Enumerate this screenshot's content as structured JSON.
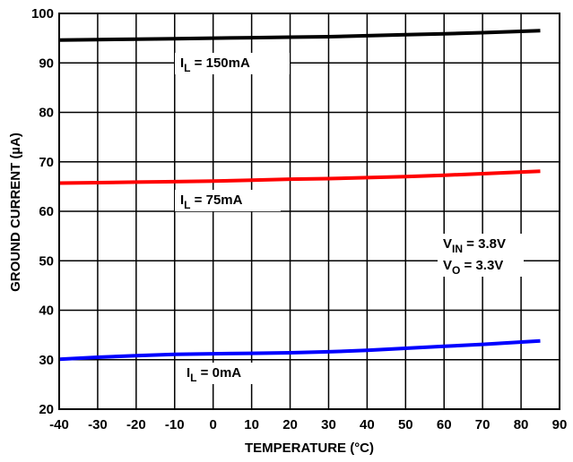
{
  "chart_data": {
    "type": "line",
    "xlabel": "TEMPERATURE (°C)",
    "ylabel": "GROUND CURRENT (µA)",
    "xlim": [
      -40,
      90
    ],
    "ylim": [
      20,
      100
    ],
    "xticks": [
      -40,
      -30,
      -20,
      -10,
      0,
      10,
      20,
      30,
      40,
      50,
      60,
      70,
      80,
      90
    ],
    "yticks": [
      20,
      30,
      40,
      50,
      60,
      70,
      80,
      90,
      100
    ],
    "xtick_labels": [
      "-40",
      "-30",
      "-20",
      "-10",
      "0",
      "10",
      "20",
      "30",
      "40",
      "50",
      "60",
      "70",
      "80",
      "90"
    ],
    "ytick_labels": [
      "20",
      "30",
      "40",
      "50",
      "60",
      "70",
      "80",
      "90",
      "100"
    ],
    "grid": true,
    "series": [
      {
        "name": "IL = 150mA",
        "color": "#000000",
        "x": [
          -40,
          -30,
          -20,
          -10,
          0,
          10,
          20,
          30,
          40,
          50,
          60,
          70,
          85
        ],
        "y": [
          94.6,
          94.7,
          94.8,
          94.9,
          95.0,
          95.1,
          95.2,
          95.3,
          95.5,
          95.7,
          95.9,
          96.1,
          96.5
        ]
      },
      {
        "name": "IL = 75mA",
        "color": "#ff0000",
        "x": [
          -40,
          -30,
          -20,
          -10,
          0,
          10,
          20,
          30,
          40,
          50,
          60,
          70,
          85
        ],
        "y": [
          65.7,
          65.8,
          65.9,
          66.0,
          66.1,
          66.3,
          66.5,
          66.6,
          66.8,
          67.0,
          67.3,
          67.6,
          68.1
        ]
      },
      {
        "name": "IL = 0mA",
        "color": "#0000ff",
        "x": [
          -40,
          -30,
          -20,
          -10,
          0,
          10,
          20,
          30,
          40,
          50,
          60,
          70,
          85
        ],
        "y": [
          30.1,
          30.5,
          30.8,
          31.1,
          31.2,
          31.3,
          31.4,
          31.6,
          31.9,
          32.3,
          32.7,
          33.1,
          33.8
        ]
      }
    ],
    "annotations": {
      "il150": {
        "main": "I",
        "sub": "L",
        "rest": " = 150mA"
      },
      "il75": {
        "main": "I",
        "sub": "L",
        "rest": " = 75mA"
      },
      "il0": {
        "main": "I",
        "sub": "L",
        "rest": " = 0mA"
      },
      "vin": {
        "main": "V",
        "sub": "IN",
        "rest": " = 3.8V"
      },
      "vo": {
        "main": "V",
        "sub": "O",
        "rest": " = 3.3V"
      }
    }
  }
}
